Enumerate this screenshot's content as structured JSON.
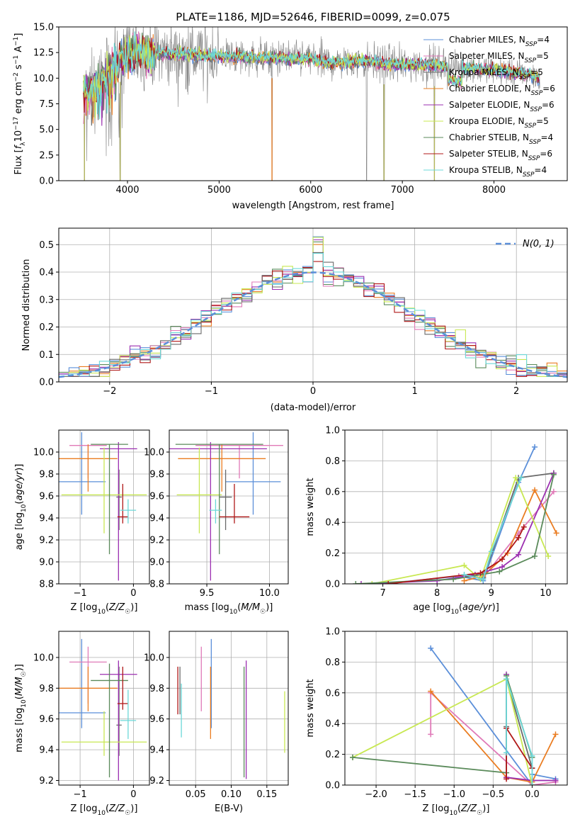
{
  "figure_title": "PLATE=1186, MJD=52646, FIBERID=0099, z=0.075",
  "colors": [
    "#5b8fd9",
    "#e07ab8",
    "#6a6a6a",
    "#ea7d22",
    "#9b2fb0",
    "#c8e852",
    "#5a8a5a",
    "#b01818",
    "#6cd8d8"
  ],
  "legend_labels": [
    "Chabrier MILES, N_SSP=4",
    "Salpeter MILES, N_SSP=5",
    "Kroupa MILES, N_SSP=5",
    "Chabrier ELODIE, N_SSP=6",
    "Salpeter ELODIE, N_SSP=6",
    "Kroupa ELODIE, N_SSP=5",
    "Chabrier STELIB, N_SSP=4",
    "Salpeter STELIB, N_SSP=6",
    "Kroupa STELIB, N_SSP=4"
  ],
  "chart_data": [
    {
      "id": "spectrum",
      "type": "line",
      "title": "PLATE=1186, MJD=52646, FIBERID=0099, z=0.075",
      "xlabel": "wavelength [Angstrom, rest frame]",
      "ylabel": "Flux [f_λ 10^-17 erg cm^-2 s^-1 A^-1]",
      "xlim": [
        3250,
        8800
      ],
      "ylim": [
        0,
        15
      ],
      "xticks": [
        4000,
        5000,
        6000,
        7000,
        8000
      ],
      "yticks": [
        0.0,
        2.5,
        5.0,
        7.5,
        10.0,
        12.5,
        15.0
      ],
      "legend_position": "top-right",
      "data_envelope": {
        "x": [
          3520,
          3600,
          3700,
          3800,
          3900,
          4000,
          4100,
          4200,
          4400,
          4600,
          4800,
          5000,
          5200,
          5400,
          5600,
          5800,
          6000,
          6200,
          6400,
          6600,
          6800,
          7000,
          7200,
          7400,
          7600,
          7800,
          8000,
          8200,
          8400,
          8500
        ],
        "y": [
          8.5,
          8.9,
          9.3,
          10.8,
          11.5,
          12.2,
          12.5,
          12.4,
          12.4,
          12.3,
          12.2,
          12.2,
          12.1,
          12.0,
          12.0,
          11.9,
          11.9,
          11.5,
          11.6,
          11.7,
          11.4,
          11.4,
          11.3,
          11.2,
          11.0,
          10.9,
          10.8,
          10.6,
          10.3,
          10.0
        ]
      },
      "noise_spikes_x": [
        3530,
        3920,
        5577,
        6610,
        6800,
        7350
      ],
      "series_names": [
        "Chabrier MILES",
        "Salpeter MILES",
        "Kroupa MILES",
        "Chabrier ELODIE",
        "Salpeter ELODIE",
        "Kroupa ELODIE",
        "Chabrier STELIB",
        "Salpeter STELIB",
        "Kroupa STELIB"
      ]
    },
    {
      "id": "residuals",
      "type": "histogram",
      "xlabel": "(data-model)/error",
      "ylabel": "Normed distribution",
      "xlim": [
        -2.5,
        2.5
      ],
      "ylim": [
        0,
        0.56
      ],
      "xticks": [
        -2,
        -1,
        0,
        1,
        2
      ],
      "yticks": [
        0.0,
        0.1,
        0.2,
        0.3,
        0.4,
        0.5
      ],
      "bin_width": 0.1,
      "reference_label": "N(0, 1)",
      "reference_mean": 0,
      "reference_sigma": 1,
      "legend_position": "top-right"
    },
    {
      "id": "age-vs-z",
      "type": "errorbar",
      "xlabel": "Z [log10(Z/Z☉)]",
      "ylabel": "age  [log10(age/yr)]",
      "xlim": [
        -1.4,
        0.3
      ],
      "ylim": [
        8.8,
        10.2
      ],
      "xticks": [
        -1,
        0
      ],
      "yticks": [
        8.8,
        9.0,
        9.2,
        9.4,
        9.6,
        9.8,
        10.0
      ],
      "points": [
        {
          "x": -0.97,
          "xerr": 0.45,
          "y": 9.73,
          "yerr": [
            0.3,
            0.45
          ]
        },
        {
          "x": -0.85,
          "xerr": 0.35,
          "y": 10.06,
          "yerr": [
            0.3,
            0.0
          ]
        },
        {
          "x": -0.27,
          "xerr": 0.05,
          "y": 9.59,
          "yerr": [
            0.3,
            0.25
          ]
        },
        {
          "x": -0.85,
          "xerr": 0.55,
          "y": 9.94,
          "yerr": [
            0.3,
            0.13
          ]
        },
        {
          "x": -0.28,
          "xerr": 0.35,
          "y": 10.03,
          "yerr": [
            1.2,
            0.06
          ]
        },
        {
          "x": -0.55,
          "xerr": 0.8,
          "y": 9.61,
          "yerr": [
            0.35,
            0.43
          ]
        },
        {
          "x": -0.45,
          "xerr": 0.35,
          "y": 10.07,
          "yerr": [
            1.0,
            0.0
          ]
        },
        {
          "x": -0.2,
          "xerr": 0.1,
          "y": 9.41,
          "yerr": [
            0.06,
            0.3
          ]
        },
        {
          "x": -0.1,
          "xerr": 0.15,
          "y": 9.47,
          "yerr": [
            0.12,
            0.1
          ]
        }
      ]
    },
    {
      "id": "age-vs-mass",
      "type": "errorbar",
      "xlabel": "mass [log10(M/M☉)]",
      "ylabel": "",
      "xlim": [
        9.2,
        10.15
      ],
      "ylim": [
        8.8,
        10.2
      ],
      "xticks": [
        9.5,
        10.0
      ],
      "yticks": [
        8.8,
        9.0,
        9.2,
        9.4,
        9.6,
        9.8,
        10.0
      ],
      "points": [
        {
          "x": 9.87,
          "xerr": 0.22,
          "y": 9.73,
          "yerr": [
            0.3,
            0.45
          ]
        },
        {
          "x": 9.76,
          "xerr": 0.35,
          "y": 10.06,
          "yerr": [
            0.3,
            0.0
          ]
        },
        {
          "x": 9.65,
          "xerr": 0.05,
          "y": 9.59,
          "yerr": [
            0.3,
            0.25
          ]
        },
        {
          "x": 9.62,
          "xerr": 0.35,
          "y": 9.94,
          "yerr": [
            0.3,
            0.13
          ]
        },
        {
          "x": 9.53,
          "xerr": 0.45,
          "y": 10.03,
          "yerr": [
            1.2,
            0.06
          ]
        },
        {
          "x": 9.44,
          "xerr": 0.18,
          "y": 9.61,
          "yerr": [
            0.35,
            0.43
          ]
        },
        {
          "x": 9.6,
          "xerr": 0.35,
          "y": 10.07,
          "yerr": [
            1.0,
            0.0
          ]
        },
        {
          "x": 9.72,
          "xerr": 0.12,
          "y": 9.41,
          "yerr": [
            0.06,
            0.3
          ]
        },
        {
          "x": 9.57,
          "xerr": 0.05,
          "y": 9.47,
          "yerr": [
            0.12,
            0.1
          ]
        }
      ]
    },
    {
      "id": "weight-vs-age",
      "type": "line",
      "xlabel": "age  [log10(age/yr)]",
      "ylabel": "mass weight",
      "xlim": [
        6.3,
        10.4
      ],
      "ylim": [
        0,
        1.0
      ],
      "xticks": [
        7,
        8,
        9,
        10
      ],
      "yticks": [
        0.0,
        0.2,
        0.4,
        0.6,
        0.8,
        1.0
      ],
      "series": [
        {
          "x": [
            7.0,
            8.4,
            8.85,
            9.5,
            9.8
          ],
          "y": [
            0.0,
            0.05,
            0.02,
            0.66,
            0.89
          ]
        },
        {
          "x": [
            8.4,
            8.85,
            9.5,
            10.15
          ],
          "y": [
            0.05,
            0.04,
            0.33,
            0.6
          ]
        },
        {
          "x": [
            8.85,
            9.5,
            10.15
          ],
          "y": [
            0.04,
            0.69,
            0.72
          ]
        },
        {
          "x": [
            8.5,
            8.85,
            9.3,
            9.8,
            10.2
          ],
          "y": [
            0.02,
            0.05,
            0.2,
            0.61,
            0.33
          ]
        },
        {
          "x": [
            6.6,
            8.0,
            8.7,
            9.2,
            9.5,
            10.15
          ],
          "y": [
            0.0,
            0.02,
            0.06,
            0.11,
            0.19,
            0.72
          ]
        },
        {
          "x": [
            6.8,
            8.5,
            8.8,
            9.45,
            10.05
          ],
          "y": [
            0.0,
            0.12,
            0.03,
            0.69,
            0.18
          ]
        },
        {
          "x": [
            6.5,
            8.3,
            9.15,
            9.8,
            10.15
          ],
          "y": [
            0.0,
            0.03,
            0.08,
            0.18,
            0.71
          ]
        },
        {
          "x": [
            7.1,
            8.8,
            9.2,
            9.5,
            9.6
          ],
          "y": [
            0.0,
            0.07,
            0.16,
            0.3,
            0.37
          ]
        },
        {
          "x": [
            8.5,
            8.85,
            9.0,
            9.55
          ],
          "y": [
            0.06,
            0.03,
            0.21,
            0.69
          ]
        }
      ]
    },
    {
      "id": "mass-vs-z",
      "type": "errorbar",
      "xlabel": "Z [log10(Z/Z☉)]",
      "ylabel": "mass [log10(M/M☉)]",
      "xlim": [
        -1.4,
        0.3
      ],
      "ylim": [
        9.17,
        10.17
      ],
      "xticks": [
        -1,
        0
      ],
      "yticks": [
        9.2,
        9.4,
        9.6,
        9.8,
        10.0
      ],
      "points": [
        {
          "x": -0.97,
          "xerr": 0.45,
          "y": 9.64,
          "yerr": [
            0.1,
            0.48
          ]
        },
        {
          "x": -0.85,
          "xerr": 0.35,
          "y": 9.97,
          "yerr": [
            0.27,
            0.1
          ]
        },
        {
          "x": -0.27,
          "xerr": 0.05,
          "y": 9.56,
          "yerr": [
            0.2,
            0.38
          ]
        },
        {
          "x": -0.85,
          "xerr": 0.55,
          "y": 9.8,
          "yerr": [
            0.15,
            0.14
          ]
        },
        {
          "x": -0.28,
          "xerr": 0.35,
          "y": 9.89,
          "yerr": [
            0.69,
            0.09
          ]
        },
        {
          "x": -0.55,
          "xerr": 0.8,
          "y": 9.45,
          "yerr": [
            0.09,
            0.2
          ]
        },
        {
          "x": -0.45,
          "xerr": 0.35,
          "y": 9.85,
          "yerr": [
            0.63,
            0.11
          ]
        },
        {
          "x": -0.2,
          "xerr": 0.1,
          "y": 9.7,
          "yerr": [
            0.04,
            0.24
          ]
        },
        {
          "x": -0.1,
          "xerr": 0.15,
          "y": 9.59,
          "yerr": [
            0.12,
            0.2
          ]
        }
      ]
    },
    {
      "id": "mass-vs-ebv",
      "type": "errorbar",
      "xlabel": "E(B-V)",
      "ylabel": "",
      "xlim": [
        0.013,
        0.18
      ],
      "ylim": [
        9.17,
        10.17
      ],
      "xticks": [
        0.05,
        0.1,
        0.15
      ],
      "yticks": [
        9.2,
        9.4,
        9.6,
        9.8,
        10.0
      ],
      "points": [
        {
          "x": 0.072,
          "yerr": [
            9.54,
            10.12
          ]
        },
        {
          "x": 0.058,
          "yerr": [
            9.65,
            10.07
          ]
        },
        {
          "x": 0.028,
          "yerr": [
            9.63,
            9.94
          ]
        },
        {
          "x": 0.071,
          "yerr": [
            9.47,
            9.94
          ]
        },
        {
          "x": 0.121,
          "yerr": [
            9.21,
            9.98
          ]
        },
        {
          "x": 0.175,
          "yerr": [
            9.38,
            9.78
          ]
        },
        {
          "x": 0.118,
          "yerr": [
            9.22,
            9.94
          ]
        },
        {
          "x": 0.025,
          "yerr": [
            9.63,
            9.94
          ]
        },
        {
          "x": 0.03,
          "yerr": [
            9.48,
            9.83
          ]
        }
      ]
    },
    {
      "id": "weight-vs-z",
      "type": "line",
      "xlabel": "Z [log10(Z/Z☉)]",
      "ylabel": "mass weight",
      "xlim": [
        -2.4,
        0.45
      ],
      "ylim": [
        0,
        1.0
      ],
      "xticks": [
        -2.0,
        -1.5,
        -1.0,
        -0.5,
        0.0
      ],
      "yticks": [
        0.0,
        0.2,
        0.4,
        0.6,
        0.8,
        1.0
      ],
      "series": [
        {
          "x": [
            -1.3,
            0.0,
            0.0,
            0.3
          ],
          "y": [
            0.89,
            0.0,
            0.07,
            0.04
          ]
        },
        {
          "x": [
            -1.3,
            -1.3,
            0.0,
            0.3
          ],
          "y": [
            0.33,
            0.6,
            0.0,
            0.02
          ]
        },
        {
          "x": [
            -0.33,
            -0.33,
            0.0
          ],
          "y": [
            0.38,
            0.69,
            0.11
          ]
        },
        {
          "x": [
            -1.3,
            -0.33,
            0.0,
            0.3
          ],
          "y": [
            0.61,
            0.05,
            0.02,
            0.33
          ]
        },
        {
          "x": [
            -0.33,
            -0.33,
            0.0,
            0.3
          ],
          "y": [
            0.72,
            0.05,
            0.03,
            0.03
          ]
        },
        {
          "x": [
            -2.3,
            -0.33,
            0.0
          ],
          "y": [
            0.18,
            0.69,
            0.0
          ]
        },
        {
          "x": [
            -2.3,
            -0.33,
            -0.33,
            0.0
          ],
          "y": [
            0.18,
            0.08,
            0.71,
            0.18
          ]
        },
        {
          "x": [
            -0.33,
            -0.33,
            0.0
          ],
          "y": [
            0.04,
            0.37,
            0.11
          ]
        },
        {
          "x": [
            -0.33,
            -0.33,
            0.0,
            0.0
          ],
          "y": [
            0.21,
            0.69,
            0.19,
            0.0
          ]
        }
      ]
    }
  ]
}
